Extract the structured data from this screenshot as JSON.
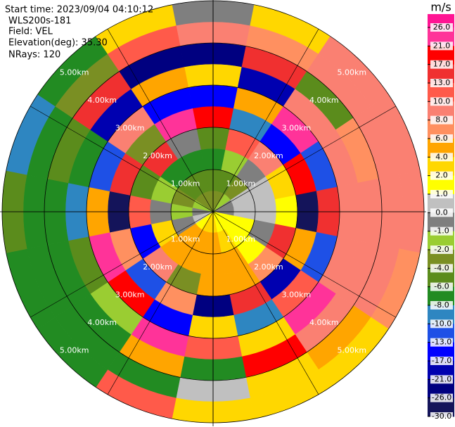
{
  "header": {
    "start_time": "Start time: 2023/09/04 04:10:12",
    "instrument": "WLS200s-181",
    "field": "Field: VEL",
    "elevation": "Elevation(deg): 35.30",
    "nrays": "NRays: 120"
  },
  "chart_data": {
    "type": "ppi",
    "rlim": [
      0,
      5
    ],
    "range_rings": [
      {
        "value": 1,
        "label": "1.00km"
      },
      {
        "value": 2,
        "label": "2.00km"
      },
      {
        "value": 3,
        "label": "3.00km"
      },
      {
        "value": 4,
        "label": "4.00km"
      },
      {
        "value": 5,
        "label": "5.00km"
      }
    ],
    "field": [
      [
        -3,
        -5,
        -7,
        -5,
        20,
        -15,
        3,
        -25,
        9,
        -1
      ],
      [
        -3,
        -5,
        -2,
        12,
        -9,
        5,
        -20,
        15,
        7,
        3
      ],
      [
        -2,
        -3,
        -1,
        8,
        -14,
        22,
        9,
        -6,
        9,
        9
      ],
      [
        -1,
        0.5,
        0.5,
        3,
        18,
        -11,
        9,
        7,
        9,
        9
      ],
      [
        -0.5,
        0.5,
        0.5,
        1.5,
        -28,
        15,
        9,
        9,
        9,
        9
      ],
      [
        1.5,
        1.5,
        -0.5,
        16,
        5,
        -12,
        9,
        9,
        9,
        7
      ],
      [
        1.5,
        1.5,
        1.5,
        7,
        -18,
        11,
        24,
        9,
        5,
        3
      ],
      [
        1.5,
        3,
        5,
        5,
        14,
        -9,
        3,
        19,
        3,
        3
      ],
      [
        3,
        5,
        5,
        5,
        -22,
        3,
        12,
        -7,
        0.5,
        2
      ],
      [
        3,
        5,
        5,
        -3,
        7,
        -16,
        21,
        5,
        -7,
        11
      ],
      [
        1.5,
        5,
        5,
        9,
        -11,
        18,
        -2,
        -7,
        -7,
        -7
      ],
      [
        0.5,
        -0.5,
        3,
        -14,
        6,
        22,
        -5,
        -7,
        -7,
        -7
      ],
      [
        -0.5,
        -1.5,
        -0.5,
        12,
        -27,
        4,
        -9,
        -7,
        -7,
        -5
      ],
      [
        -1.5,
        -3,
        -1.5,
        -5,
        15,
        -12,
        -7,
        -5,
        -7,
        -9
      ],
      [
        -3,
        -5,
        -7,
        16,
        -3,
        9,
        -19,
        14,
        -3,
        -7
      ],
      [
        -3,
        -5,
        -7,
        -1,
        24,
        -14,
        5,
        -22,
        11,
        3
      ]
    ],
    "colorbar": {
      "title": "m/s",
      "ticks": [
        {
          "value": 26,
          "label": "26.0"
        },
        {
          "value": 21,
          "label": "21.0"
        },
        {
          "value": 17,
          "label": "17.0"
        },
        {
          "value": 13,
          "label": "13.0"
        },
        {
          "value": 10,
          "label": "10.0"
        },
        {
          "value": 8,
          "label": "8.0"
        },
        {
          "value": 6,
          "label": "6.0"
        },
        {
          "value": 4,
          "label": "4.0"
        },
        {
          "value": 2,
          "label": "2.0"
        },
        {
          "value": 1,
          "label": "1.0"
        },
        {
          "value": 0,
          "label": "0.0"
        },
        {
          "value": -1,
          "label": "-1.0"
        },
        {
          "value": -2,
          "label": "-2.0"
        },
        {
          "value": -4,
          "label": "-4.0"
        },
        {
          "value": -6,
          "label": "-6.0"
        },
        {
          "value": -8,
          "label": "-8.0"
        },
        {
          "value": -10,
          "label": "-10.0"
        },
        {
          "value": -13,
          "label": "-13.0"
        },
        {
          "value": -17,
          "label": "-17.0"
        },
        {
          "value": -21,
          "label": "-21.0"
        },
        {
          "value": -26,
          "label": "-26.0"
        },
        {
          "value": -30,
          "label": "-30.0"
        }
      ],
      "colors": [
        "#ff1493",
        "#ff3399",
        "#ff0000",
        "#f03030",
        "#ff5a4a",
        "#fa8072",
        "#ff9060",
        "#ffa500",
        "#ffd700",
        "#ffff00",
        "#c0c0c0",
        "#7f7f7f",
        "#9acd32",
        "#7a8f23",
        "#5b8c1c",
        "#228b22",
        "#2e86c1",
        "#1e50e6",
        "#0000ff",
        "#0000b0",
        "#000080",
        "#14145a"
      ]
    }
  }
}
